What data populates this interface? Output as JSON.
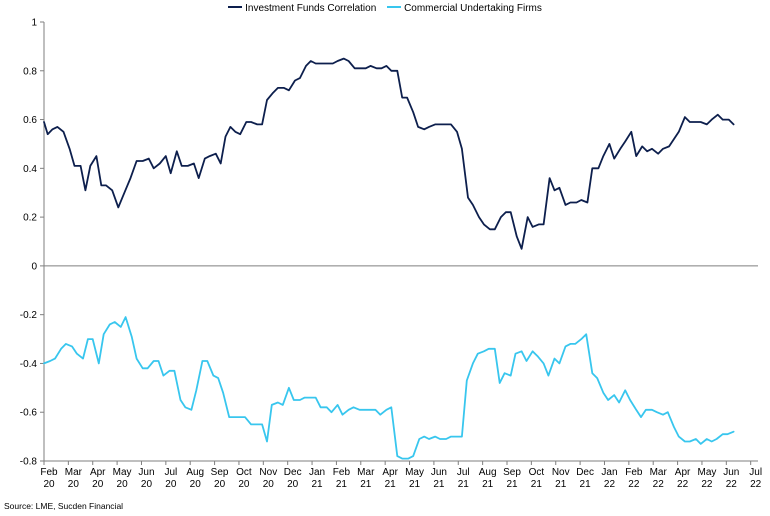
{
  "chart_data": {
    "type": "line",
    "title": "",
    "xlabel": "",
    "ylabel": "",
    "ylim": [
      -0.8,
      1
    ],
    "yticks": [
      1,
      0.8,
      0.6,
      0.4,
      0.2,
      0,
      -0.2,
      -0.4,
      -0.6,
      -0.8
    ],
    "ytick_labels": [
      "1",
      "0.8",
      "0.6",
      "0.4",
      "0.2",
      "0",
      "-0.2",
      "-0.4",
      "-0.6",
      "-0.8"
    ],
    "x_ticks": [
      {
        "month": "Feb",
        "year": "20"
      },
      {
        "month": "Mar",
        "year": "20"
      },
      {
        "month": "Apr",
        "year": "20"
      },
      {
        "month": "May",
        "year": "20"
      },
      {
        "month": "Jun",
        "year": "20"
      },
      {
        "month": "Jul",
        "year": "20"
      },
      {
        "month": "Aug",
        "year": "20"
      },
      {
        "month": "Sep",
        "year": "20"
      },
      {
        "month": "Oct",
        "year": "20"
      },
      {
        "month": "Nov",
        "year": "20"
      },
      {
        "month": "Dec",
        "year": "20"
      },
      {
        "month": "Jan",
        "year": "21"
      },
      {
        "month": "Feb",
        "year": "21"
      },
      {
        "month": "Mar",
        "year": "21"
      },
      {
        "month": "Apr",
        "year": "21"
      },
      {
        "month": "May",
        "year": "21"
      },
      {
        "month": "Jun",
        "year": "21"
      },
      {
        "month": "Jul",
        "year": "21"
      },
      {
        "month": "Aug",
        "year": "21"
      },
      {
        "month": "Sep",
        "year": "21"
      },
      {
        "month": "Oct",
        "year": "21"
      },
      {
        "month": "Nov",
        "year": "21"
      },
      {
        "month": "Dec",
        "year": "21"
      },
      {
        "month": "Jan",
        "year": "22"
      },
      {
        "month": "Feb",
        "year": "22"
      },
      {
        "month": "Mar",
        "year": "22"
      },
      {
        "month": "Apr",
        "year": "22"
      },
      {
        "month": "May",
        "year": "22"
      },
      {
        "month": "Jun",
        "year": "22"
      },
      {
        "month": "Jul",
        "year": "22"
      }
    ],
    "x_range_months": [
      0,
      29.3
    ],
    "legend_position": "top-center",
    "grid": false,
    "series": [
      {
        "name": "Investment Funds Correlation",
        "color": "#0d1f4d",
        "points": [
          [
            0,
            0.59
          ],
          [
            0.15,
            0.54
          ],
          [
            0.35,
            0.56
          ],
          [
            0.55,
            0.57
          ],
          [
            0.8,
            0.55
          ],
          [
            1.05,
            0.48
          ],
          [
            1.25,
            0.41
          ],
          [
            1.5,
            0.41
          ],
          [
            1.7,
            0.31
          ],
          [
            1.9,
            0.41
          ],
          [
            2.15,
            0.45
          ],
          [
            2.35,
            0.33
          ],
          [
            2.55,
            0.33
          ],
          [
            2.8,
            0.31
          ],
          [
            3.05,
            0.24
          ],
          [
            3.3,
            0.3
          ],
          [
            3.55,
            0.36
          ],
          [
            3.8,
            0.43
          ],
          [
            4.05,
            0.43
          ],
          [
            4.3,
            0.44
          ],
          [
            4.5,
            0.4
          ],
          [
            4.75,
            0.42
          ],
          [
            5.0,
            0.45
          ],
          [
            5.2,
            0.38
          ],
          [
            5.45,
            0.47
          ],
          [
            5.65,
            0.41
          ],
          [
            5.9,
            0.41
          ],
          [
            6.15,
            0.42
          ],
          [
            6.35,
            0.36
          ],
          [
            6.6,
            0.44
          ],
          [
            6.8,
            0.45
          ],
          [
            7.05,
            0.46
          ],
          [
            7.25,
            0.42
          ],
          [
            7.45,
            0.53
          ],
          [
            7.65,
            0.57
          ],
          [
            7.85,
            0.55
          ],
          [
            8.05,
            0.54
          ],
          [
            8.3,
            0.59
          ],
          [
            8.5,
            0.59
          ],
          [
            8.75,
            0.58
          ],
          [
            8.95,
            0.58
          ],
          [
            9.15,
            0.68
          ],
          [
            9.4,
            0.71
          ],
          [
            9.6,
            0.73
          ],
          [
            9.85,
            0.73
          ],
          [
            10.05,
            0.72
          ],
          [
            10.3,
            0.76
          ],
          [
            10.5,
            0.77
          ],
          [
            10.75,
            0.82
          ],
          [
            10.95,
            0.84
          ],
          [
            11.15,
            0.83
          ],
          [
            11.4,
            0.83
          ],
          [
            11.6,
            0.83
          ],
          [
            11.85,
            0.83
          ],
          [
            12.05,
            0.84
          ],
          [
            12.3,
            0.85
          ],
          [
            12.5,
            0.84
          ],
          [
            12.75,
            0.81
          ],
          [
            12.95,
            0.81
          ],
          [
            13.2,
            0.81
          ],
          [
            13.4,
            0.82
          ],
          [
            13.65,
            0.81
          ],
          [
            13.85,
            0.81
          ],
          [
            14.05,
            0.82
          ],
          [
            14.25,
            0.8
          ],
          [
            14.5,
            0.8
          ],
          [
            14.7,
            0.69
          ],
          [
            14.9,
            0.69
          ],
          [
            15.15,
            0.63
          ],
          [
            15.35,
            0.57
          ],
          [
            15.6,
            0.56
          ],
          [
            15.8,
            0.57
          ],
          [
            16.05,
            0.58
          ],
          [
            16.25,
            0.58
          ],
          [
            16.5,
            0.58
          ],
          [
            16.7,
            0.58
          ],
          [
            16.95,
            0.55
          ],
          [
            17.15,
            0.48
          ],
          [
            17.4,
            0.28
          ],
          [
            17.6,
            0.25
          ],
          [
            17.85,
            0.2
          ],
          [
            18.05,
            0.17
          ],
          [
            18.3,
            0.15
          ],
          [
            18.5,
            0.15
          ],
          [
            18.75,
            0.2
          ],
          [
            18.95,
            0.22
          ],
          [
            19.15,
            0.22
          ],
          [
            19.4,
            0.12
          ],
          [
            19.6,
            0.07
          ],
          [
            19.85,
            0.2
          ],
          [
            20.05,
            0.16
          ],
          [
            20.3,
            0.17
          ],
          [
            20.5,
            0.17
          ],
          [
            20.75,
            0.36
          ],
          [
            20.95,
            0.31
          ],
          [
            21.15,
            0.32
          ],
          [
            21.4,
            0.25
          ],
          [
            21.6,
            0.26
          ],
          [
            21.85,
            0.26
          ],
          [
            22.05,
            0.27
          ],
          [
            22.3,
            0.26
          ],
          [
            22.5,
            0.4
          ],
          [
            22.75,
            0.4
          ],
          [
            22.95,
            0.45
          ],
          [
            23.2,
            0.5
          ],
          [
            23.4,
            0.44
          ],
          [
            23.65,
            0.48
          ],
          [
            23.85,
            0.51
          ],
          [
            24.1,
            0.55
          ],
          [
            24.3,
            0.45
          ],
          [
            24.55,
            0.49
          ],
          [
            24.75,
            0.47
          ],
          [
            24.95,
            0.48
          ],
          [
            25.2,
            0.46
          ],
          [
            25.4,
            0.48
          ],
          [
            25.65,
            0.49
          ],
          [
            25.85,
            0.52
          ],
          [
            26.05,
            0.55
          ],
          [
            26.3,
            0.61
          ],
          [
            26.5,
            0.59
          ],
          [
            26.75,
            0.59
          ],
          [
            26.95,
            0.59
          ],
          [
            27.2,
            0.58
          ],
          [
            27.4,
            0.6
          ],
          [
            27.65,
            0.62
          ],
          [
            27.85,
            0.6
          ],
          [
            28.1,
            0.6
          ],
          [
            28.3,
            0.58
          ]
        ]
      },
      {
        "name": "Commercial Undertaking Firms",
        "color": "#38c6ee",
        "points": [
          [
            0,
            -0.4
          ],
          [
            0.25,
            -0.39
          ],
          [
            0.45,
            -0.38
          ],
          [
            0.7,
            -0.34
          ],
          [
            0.9,
            -0.32
          ],
          [
            1.15,
            -0.33
          ],
          [
            1.35,
            -0.36
          ],
          [
            1.6,
            -0.38
          ],
          [
            1.8,
            -0.3
          ],
          [
            2.0,
            -0.3
          ],
          [
            2.25,
            -0.4
          ],
          [
            2.45,
            -0.28
          ],
          [
            2.7,
            -0.24
          ],
          [
            2.9,
            -0.23
          ],
          [
            3.15,
            -0.25
          ],
          [
            3.35,
            -0.21
          ],
          [
            3.6,
            -0.29
          ],
          [
            3.8,
            -0.38
          ],
          [
            4.05,
            -0.42
          ],
          [
            4.25,
            -0.42
          ],
          [
            4.5,
            -0.39
          ],
          [
            4.7,
            -0.39
          ],
          [
            4.9,
            -0.45
          ],
          [
            5.15,
            -0.43
          ],
          [
            5.35,
            -0.43
          ],
          [
            5.6,
            -0.55
          ],
          [
            5.8,
            -0.58
          ],
          [
            6.05,
            -0.59
          ],
          [
            6.25,
            -0.51
          ],
          [
            6.5,
            -0.39
          ],
          [
            6.7,
            -0.39
          ],
          [
            6.95,
            -0.45
          ],
          [
            7.15,
            -0.46
          ],
          [
            7.35,
            -0.52
          ],
          [
            7.6,
            -0.62
          ],
          [
            7.8,
            -0.62
          ],
          [
            8.05,
            -0.62
          ],
          [
            8.25,
            -0.62
          ],
          [
            8.5,
            -0.65
          ],
          [
            8.7,
            -0.65
          ],
          [
            8.95,
            -0.65
          ],
          [
            9.15,
            -0.72
          ],
          [
            9.35,
            -0.57
          ],
          [
            9.6,
            -0.56
          ],
          [
            9.8,
            -0.57
          ],
          [
            10.05,
            -0.5
          ],
          [
            10.25,
            -0.55
          ],
          [
            10.5,
            -0.55
          ],
          [
            10.7,
            -0.54
          ],
          [
            10.95,
            -0.54
          ],
          [
            11.15,
            -0.54
          ],
          [
            11.35,
            -0.58
          ],
          [
            11.6,
            -0.58
          ],
          [
            11.8,
            -0.6
          ],
          [
            12.05,
            -0.57
          ],
          [
            12.25,
            -0.61
          ],
          [
            12.5,
            -0.59
          ],
          [
            12.7,
            -0.58
          ],
          [
            12.95,
            -0.59
          ],
          [
            13.15,
            -0.59
          ],
          [
            13.4,
            -0.59
          ],
          [
            13.6,
            -0.59
          ],
          [
            13.8,
            -0.61
          ],
          [
            14.05,
            -0.59
          ],
          [
            14.25,
            -0.58
          ],
          [
            14.5,
            -0.78
          ],
          [
            14.7,
            -0.79
          ],
          [
            14.95,
            -0.79
          ],
          [
            15.15,
            -0.78
          ],
          [
            15.4,
            -0.71
          ],
          [
            15.6,
            -0.7
          ],
          [
            15.8,
            -0.71
          ],
          [
            16.05,
            -0.7
          ],
          [
            16.25,
            -0.71
          ],
          [
            16.5,
            -0.71
          ],
          [
            16.7,
            -0.7
          ],
          [
            16.95,
            -0.7
          ],
          [
            17.15,
            -0.7
          ],
          [
            17.35,
            -0.47
          ],
          [
            17.6,
            -0.4
          ],
          [
            17.8,
            -0.36
          ],
          [
            18.05,
            -0.35
          ],
          [
            18.25,
            -0.34
          ],
          [
            18.5,
            -0.34
          ],
          [
            18.7,
            -0.48
          ],
          [
            18.9,
            -0.44
          ],
          [
            19.15,
            -0.45
          ],
          [
            19.35,
            -0.36
          ],
          [
            19.6,
            -0.35
          ],
          [
            19.8,
            -0.39
          ],
          [
            20.05,
            -0.35
          ],
          [
            20.25,
            -0.37
          ],
          [
            20.5,
            -0.4
          ],
          [
            20.7,
            -0.45
          ],
          [
            20.95,
            -0.38
          ],
          [
            21.15,
            -0.4
          ],
          [
            21.4,
            -0.33
          ],
          [
            21.6,
            -0.32
          ],
          [
            21.8,
            -0.32
          ],
          [
            22.05,
            -0.3
          ],
          [
            22.25,
            -0.28
          ],
          [
            22.5,
            -0.44
          ],
          [
            22.7,
            -0.46
          ],
          [
            22.95,
            -0.52
          ],
          [
            23.15,
            -0.55
          ],
          [
            23.4,
            -0.53
          ],
          [
            23.6,
            -0.56
          ],
          [
            23.85,
            -0.51
          ],
          [
            24.05,
            -0.55
          ],
          [
            24.3,
            -0.59
          ],
          [
            24.5,
            -0.62
          ],
          [
            24.7,
            -0.59
          ],
          [
            24.95,
            -0.59
          ],
          [
            25.15,
            -0.6
          ],
          [
            25.4,
            -0.61
          ],
          [
            25.6,
            -0.6
          ],
          [
            25.85,
            -0.66
          ],
          [
            26.05,
            -0.7
          ],
          [
            26.3,
            -0.72
          ],
          [
            26.5,
            -0.72
          ],
          [
            26.75,
            -0.71
          ],
          [
            26.95,
            -0.73
          ],
          [
            27.2,
            -0.71
          ],
          [
            27.4,
            -0.72
          ],
          [
            27.6,
            -0.71
          ],
          [
            27.85,
            -0.69
          ],
          [
            28.05,
            -0.69
          ],
          [
            28.3,
            -0.68
          ]
        ]
      }
    ]
  },
  "legend": {
    "items": [
      {
        "label": "Investment Funds Correlation",
        "color": "#0d1f4d"
      },
      {
        "label": "Commercial Undertaking Firms",
        "color": "#38c6ee"
      }
    ]
  },
  "source": "Source: LME, Sucden Financial"
}
